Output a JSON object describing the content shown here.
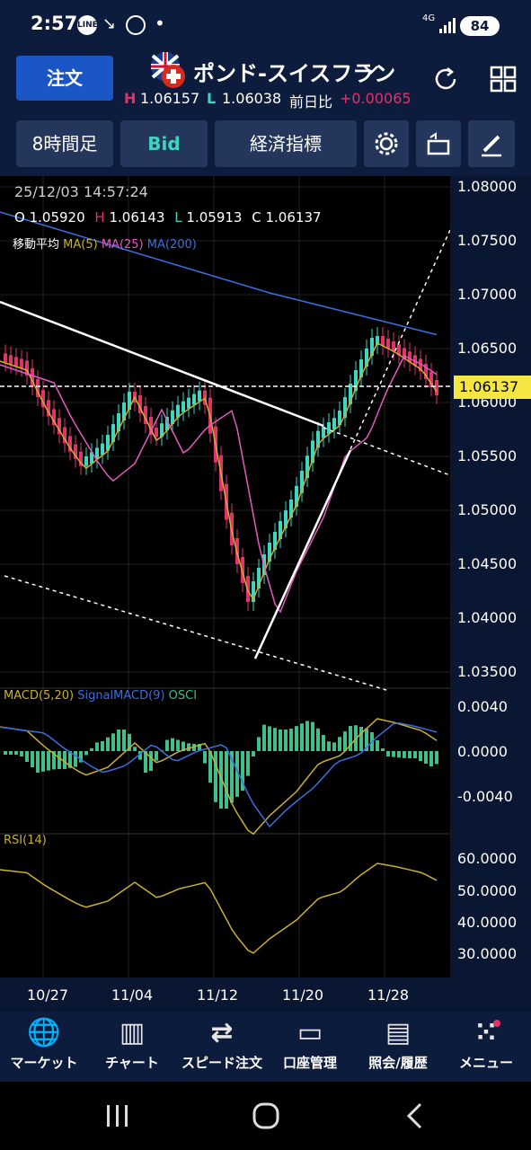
{
  "status_bar": {
    "time": "2:57",
    "battery": "84",
    "network": "4G",
    "dot": "•"
  },
  "header": {
    "order_button": "注文",
    "pair": "ポンド-スイスフラン",
    "high_label": "H",
    "high": "1.06157",
    "low_label": "L",
    "low": "1.06038",
    "change_label": "前日比",
    "change": "+0.00065"
  },
  "toolbar": {
    "timeframe": "8時間足",
    "price_type": "Bid",
    "indicators": "経済指標"
  },
  "chart": {
    "timestamp": "25/12/03 14:57:24",
    "ohlc": {
      "o_label": "O",
      "o": "1.05920",
      "h_label": "H",
      "h": "1.06143",
      "l_label": "L",
      "l": "1.05913",
      "c_label": "C",
      "c": "1.06137"
    },
    "ma_label": "移動平均",
    "ma5": "MA(5)",
    "ma25": "MA(25)",
    "ma200": "MA(200)",
    "current_price": "1.06137",
    "price_ticks": [
      "1.08000",
      "1.07500",
      "1.07000",
      "1.06500",
      "1.06000",
      "1.05500",
      "1.05000",
      "1.04500",
      "1.04000",
      "1.03500"
    ],
    "macd_label": "MACD(5,20)",
    "signal_label": "SignalMACD(9)",
    "osci_label": "OSCI",
    "macd_ticks": [
      "0.0040",
      "0.0000",
      "-0.0040"
    ],
    "rsi_label": "RSI(14)",
    "rsi_ticks": [
      "60.0000",
      "50.0000",
      "40.0000",
      "30.0000"
    ],
    "dates": [
      "10/27",
      "11/04",
      "11/12",
      "11/20",
      "11/28"
    ],
    "colors": {
      "ma5": "#c9b12a",
      "ma25": "#e05bbd",
      "ma200": "#3b6fe0",
      "up": "#3fd6c0",
      "down": "#e0336a",
      "price_tag": "#f5e642"
    }
  },
  "bottom_nav": [
    {
      "label": "マーケット",
      "icon": "globe-icon"
    },
    {
      "label": "チャート",
      "icon": "candlestick-icon"
    },
    {
      "label": "スピード注文",
      "icon": "arrows-exchange-icon"
    },
    {
      "label": "口座管理",
      "icon": "wallet-icon"
    },
    {
      "label": "照会/履歴",
      "icon": "document-icon"
    },
    {
      "label": "メニュー",
      "icon": "grid-dots-icon"
    }
  ]
}
